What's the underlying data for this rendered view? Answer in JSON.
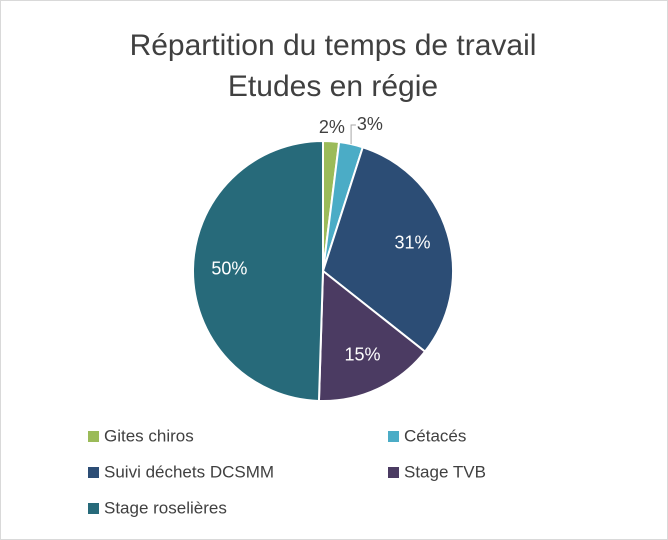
{
  "chart_data": {
    "type": "pie",
    "title": "Répartition du temps de travail",
    "subtitle": "Etudes en régie",
    "categories": [
      "Gites chiros",
      "Cétacés",
      "Suivi déchets DCSMM",
      "Stage TVB",
      "Stage roselières"
    ],
    "values": [
      2,
      3,
      31,
      15,
      50
    ],
    "value_labels": [
      "2%",
      "3%",
      "31%",
      "15%",
      "50%"
    ],
    "colors": [
      "#9bbb59",
      "#4bacc6",
      "#2c4d75",
      "#4b3b62",
      "#276a7a"
    ],
    "legend": "bottom"
  }
}
